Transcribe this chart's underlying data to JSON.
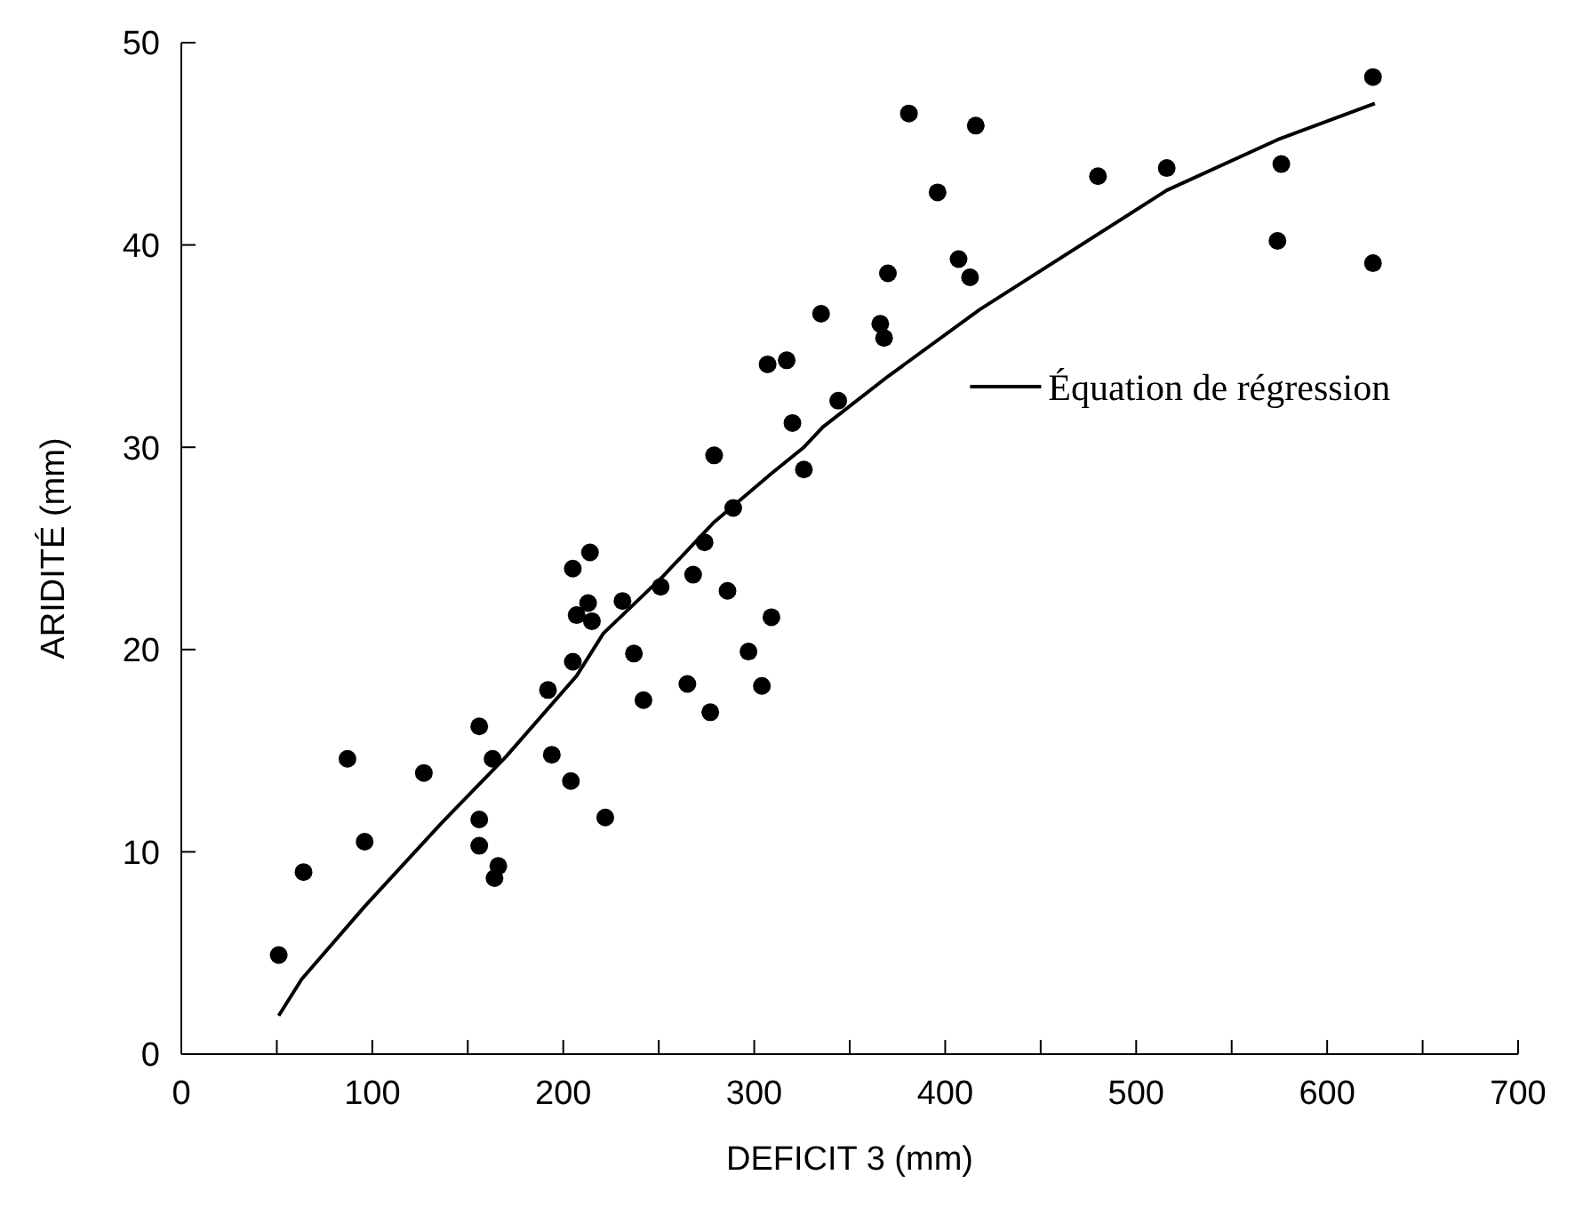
{
  "chart_data": {
    "type": "scatter",
    "xlabel": "DEFICIT 3 (mm)",
    "ylabel": "ARIDITÉ (mm)",
    "xlim": [
      0,
      700
    ],
    "ylim": [
      0,
      50
    ],
    "xticks": [
      0,
      {
        "value": 50,
        "label": null
      },
      100,
      {
        "value": 150,
        "label": null
      },
      200,
      {
        "value": 250,
        "label": null
      },
      300,
      {
        "value": 350,
        "label": null
      },
      400,
      {
        "value": 450,
        "label": null
      },
      500,
      {
        "value": 550,
        "label": null
      },
      600,
      {
        "value": 650,
        "label": null
      },
      700
    ],
    "yticks": [
      0,
      10,
      20,
      30,
      40,
      50
    ],
    "grid": false,
    "legend": "right",
    "marker": "circle",
    "series": [
      {
        "type": "scatter",
        "color": "#000000",
        "x": [
          51,
          64,
          87,
          96,
          127,
          156,
          156,
          156,
          163,
          166,
          164,
          192,
          194,
          204,
          205,
          222,
          207,
          215,
          213,
          205,
          214,
          231,
          237,
          242,
          251,
          265,
          268,
          286,
          309,
          274,
          289,
          279,
          326,
          320,
          344,
          307,
          317,
          335,
          366,
          368,
          370,
          381,
          416,
          396,
          407,
          413,
          480,
          516,
          576,
          574,
          624,
          624,
          297,
          304,
          277
        ],
        "values": [
          4.9,
          9.0,
          14.6,
          10.5,
          13.9,
          16.2,
          11.6,
          10.3,
          14.6,
          9.3,
          8.7,
          18.0,
          14.8,
          13.5,
          19.4,
          11.7,
          21.7,
          21.4,
          22.3,
          24.0,
          24.8,
          22.4,
          19.8,
          17.5,
          23.1,
          18.3,
          23.7,
          22.9,
          21.6,
          25.3,
          27.0,
          29.6,
          28.9,
          31.2,
          32.3,
          34.1,
          34.3,
          36.6,
          36.1,
          35.4,
          38.6,
          46.5,
          45.9,
          42.6,
          39.3,
          38.4,
          43.4,
          43.8,
          44.0,
          40.2,
          48.3,
          39.1,
          19.9,
          18.2,
          16.9
        ]
      },
      {
        "type": "line",
        "name": "Équation de régression",
        "color": "#000000",
        "line_style": "solid",
        "marker": "none",
        "x": [
          51,
          63,
          96,
          136,
          170,
          207,
          221,
          252,
          279,
          309,
          326,
          336,
          370,
          418,
          516,
          574,
          625
        ],
        "values": [
          1.9,
          3.7,
          7.3,
          11.4,
          14.7,
          18.7,
          20.8,
          23.6,
          26.3,
          28.7,
          30.0,
          31.0,
          33.5,
          36.8,
          42.7,
          45.2,
          47.0
        ]
      }
    ]
  }
}
